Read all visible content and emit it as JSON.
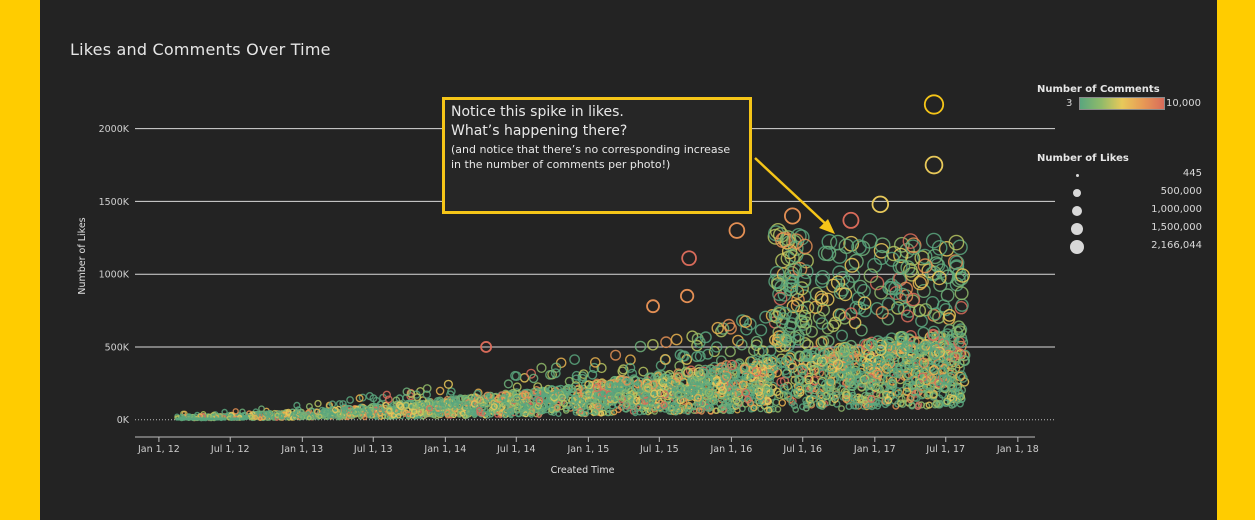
{
  "chart_data": {
    "type": "scatter",
    "title": "Likes and Comments Over Time",
    "xlabel": "Created Time",
    "ylabel": "Number of Likes",
    "x_ticks": [
      "Jan 1, 12",
      "Jul 1, 12",
      "Jan 1, 13",
      "Jul 1, 13",
      "Jan 1, 14",
      "Jul 1, 14",
      "Jan 1, 15",
      "Jul 1, 15",
      "Jan 1, 16",
      "Jul 1, 16",
      "Jan 1, 17",
      "Jul 1, 17",
      "Jan 1, 18"
    ],
    "y_ticks": [
      "0K",
      "500K",
      "1000K",
      "1500K",
      "2000K"
    ],
    "xlim": [
      "2011-11-01",
      "2018-02-01"
    ],
    "ylim": [
      -50000,
      2300000
    ],
    "grid": true,
    "highlighted_points": [
      {
        "x": "2017-06-01",
        "y": 2166044
      },
      {
        "x": "2017-06-01",
        "y": 1750000
      },
      {
        "x": "2017-01-15",
        "y": 1480000
      },
      {
        "x": "2016-11-01",
        "y": 1370000
      },
      {
        "x": "2016-01-15",
        "y": 1300000
      },
      {
        "x": "2016-06-05",
        "y": 1400000
      },
      {
        "x": "2015-09-15",
        "y": 1110000
      },
      {
        "x": "2015-09-10",
        "y": 850000
      },
      {
        "x": "2015-06-15",
        "y": 780000
      },
      {
        "x": "2014-04-15",
        "y": 500000
      }
    ],
    "color_legend": {
      "title": "Number of Comments",
      "min": "3",
      "max": "10,000",
      "colors": [
        "#5aa67e",
        "#e8c95a",
        "#d86b5a"
      ]
    },
    "size_legend": {
      "title": "Number of Likes",
      "entries": [
        "445",
        "500,000",
        "1,000,000",
        "1,500,000",
        "2,166,044"
      ]
    },
    "legend_position": "right"
  },
  "annotation": {
    "line1": "Notice this spike in likes.",
    "line2": "What’s happening there?",
    "line3": "(and notice that there’s no corresponding increase in the number of comments per photo!)",
    "color": "#f5c518"
  },
  "colors": {
    "background": "#232323",
    "frame": "#ffcc00",
    "gridline": "#d9d9d9"
  }
}
